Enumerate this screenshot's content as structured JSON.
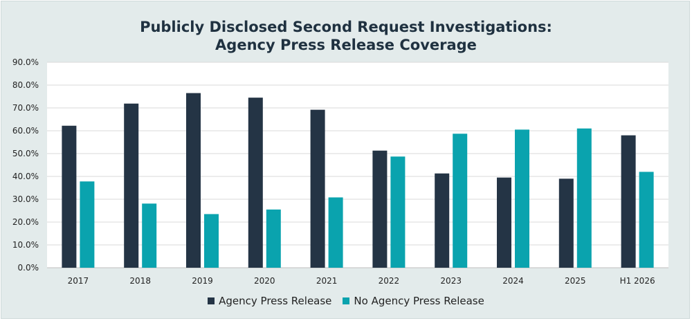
{
  "chart_data": {
    "type": "bar",
    "title_line1": "Publicly Disclosed Second Request Investigations:",
    "title_line2": "Agency Press Release Coverage",
    "categories": [
      "2017",
      "2018",
      "2019",
      "2020",
      "2021",
      "2022",
      "2023",
      "2024",
      "2025",
      "H1 2026"
    ],
    "series": [
      {
        "name": "Agency Press Release",
        "color": "#243445",
        "values": [
          62.2,
          71.9,
          76.5,
          74.5,
          69.2,
          51.3,
          41.3,
          39.5,
          39.0,
          58.0
        ]
      },
      {
        "name": "No Agency Press Release",
        "color": "#0aa3ae",
        "values": [
          37.8,
          28.1,
          23.5,
          25.5,
          30.8,
          48.7,
          58.7,
          60.5,
          61.0,
          42.0
        ]
      }
    ],
    "ylim": [
      0,
      90
    ],
    "yticks": [
      "0.0%",
      "10.0%",
      "20.0%",
      "30.0%",
      "40.0%",
      "50.0%",
      "60.0%",
      "70.0%",
      "80.0%",
      "90.0%"
    ],
    "grid": true,
    "legend_position": "bottom"
  }
}
